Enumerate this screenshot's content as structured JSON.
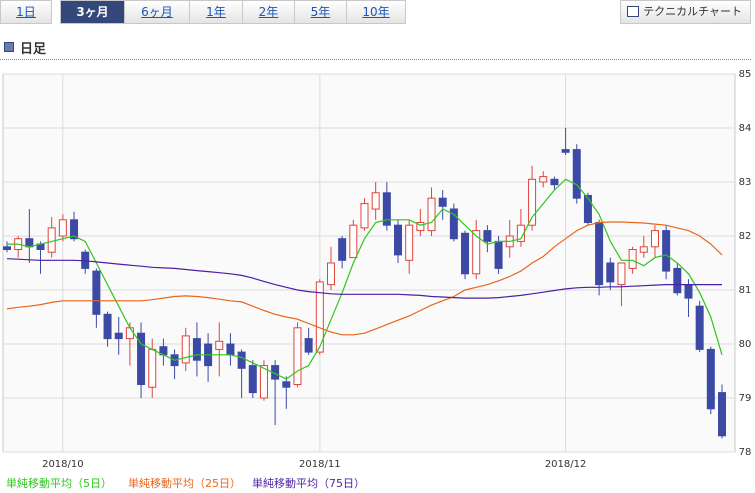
{
  "tabs": [
    "1日",
    "3ヶ月",
    "6ヶ月",
    "1年",
    "2年",
    "5年",
    "10年"
  ],
  "selected_tab": 1,
  "technical_button": "テクニカルチャート",
  "section_title": "日足",
  "chart_data": {
    "type": "candlestick",
    "categories": [
      null,
      null,
      null,
      null,
      null,
      "2018/10",
      null,
      null,
      null,
      null,
      null,
      null,
      null,
      null,
      null,
      null,
      null,
      null,
      null,
      null,
      null,
      null,
      null,
      null,
      null,
      null,
      null,
      null,
      "2018/11",
      null,
      null,
      null,
      null,
      null,
      null,
      null,
      null,
      null,
      null,
      null,
      null,
      null,
      null,
      null,
      null,
      null,
      null,
      null,
      null,
      null,
      "2018/12",
      null,
      null,
      null,
      null,
      null,
      null,
      null,
      null,
      null,
      null,
      null,
      null,
      null,
      null
    ],
    "ohlc": {
      "up_color": "#e0433a",
      "down_color": "#3c4aa6",
      "open": [
        81.8,
        81.75,
        81.95,
        81.85,
        81.7,
        82.0,
        82.3,
        81.7,
        81.35,
        80.55,
        80.2,
        80.1,
        80.2,
        79.2,
        79.95,
        79.8,
        79.65,
        80.1,
        80.0,
        79.9,
        80.0,
        79.85,
        79.6,
        79.0,
        79.6,
        79.3,
        79.25,
        80.1,
        79.85,
        81.1,
        81.95,
        81.6,
        82.15,
        82.5,
        82.8,
        82.2,
        81.55,
        82.1,
        82.1,
        82.7,
        82.5,
        82.05,
        81.3,
        82.1,
        81.9,
        81.8,
        81.9,
        82.2,
        83.0,
        83.05,
        83.6,
        83.6,
        82.75,
        82.25,
        81.5,
        81.1,
        81.4,
        81.7,
        81.8,
        82.1,
        81.4,
        81.1,
        80.7,
        79.9,
        79.1
      ],
      "high": [
        81.9,
        82.0,
        82.5,
        81.9,
        82.35,
        82.4,
        82.45,
        81.75,
        81.4,
        80.6,
        80.5,
        80.4,
        80.4,
        80.1,
        80.1,
        79.9,
        80.3,
        80.4,
        80.2,
        80.4,
        80.2,
        79.9,
        79.7,
        79.7,
        79.7,
        79.4,
        80.4,
        80.3,
        81.2,
        81.8,
        82.0,
        82.3,
        82.7,
        83.0,
        83.0,
        82.3,
        82.3,
        82.5,
        82.9,
        82.85,
        82.6,
        82.1,
        82.3,
        82.2,
        82.0,
        82.3,
        82.5,
        83.3,
        83.2,
        83.1,
        84.0,
        83.7,
        82.8,
        82.3,
        81.6,
        81.5,
        81.8,
        82.0,
        82.2,
        82.2,
        81.5,
        81.2,
        80.8,
        79.95,
        79.25
      ],
      "low": [
        81.7,
        81.6,
        81.5,
        81.3,
        81.6,
        81.9,
        81.9,
        81.3,
        80.3,
        79.95,
        79.8,
        79.6,
        79.0,
        79.0,
        79.6,
        79.35,
        79.5,
        79.4,
        79.3,
        79.4,
        79.6,
        79.0,
        79.0,
        78.95,
        78.5,
        78.8,
        79.2,
        79.8,
        79.8,
        81.0,
        81.4,
        81.6,
        82.1,
        82.3,
        82.1,
        81.5,
        81.3,
        82.0,
        82.0,
        82.3,
        81.9,
        81.2,
        81.2,
        81.7,
        81.3,
        81.6,
        81.8,
        82.1,
        82.9,
        82.85,
        83.5,
        82.6,
        82.2,
        80.9,
        81.0,
        80.7,
        81.3,
        81.6,
        81.6,
        81.2,
        80.9,
        80.5,
        79.85,
        78.7,
        78.25
      ],
      "close": [
        81.75,
        81.95,
        81.8,
        81.75,
        82.15,
        82.3,
        81.95,
        81.4,
        80.55,
        80.1,
        80.1,
        80.3,
        79.25,
        79.9,
        79.8,
        79.6,
        80.15,
        79.7,
        79.6,
        80.05,
        79.8,
        79.55,
        79.1,
        79.6,
        79.35,
        79.2,
        80.3,
        79.85,
        81.15,
        81.5,
        81.55,
        82.2,
        82.6,
        82.8,
        82.2,
        81.65,
        82.2,
        82.25,
        82.7,
        82.55,
        81.95,
        81.3,
        82.1,
        81.9,
        81.4,
        82.0,
        82.2,
        83.05,
        83.1,
        82.95,
        83.55,
        82.7,
        82.25,
        81.1,
        81.15,
        81.5,
        81.75,
        81.8,
        82.1,
        81.35,
        80.95,
        80.85,
        79.9,
        78.8,
        78.3
      ]
    },
    "series": [
      {
        "name": "単純移動平均（5日）",
        "color": "#2fc61e",
        "values": [
          81.85,
          81.85,
          81.8,
          81.85,
          81.9,
          81.95,
          82.0,
          81.9,
          81.5,
          81.1,
          80.7,
          80.3,
          80.0,
          79.9,
          79.8,
          79.7,
          79.75,
          79.8,
          79.8,
          79.8,
          79.8,
          79.75,
          79.65,
          79.55,
          79.45,
          79.35,
          79.5,
          79.6,
          79.95,
          80.45,
          80.95,
          81.5,
          81.95,
          82.25,
          82.3,
          82.3,
          82.3,
          82.2,
          82.25,
          82.5,
          82.4,
          82.2,
          82.0,
          81.85,
          81.9,
          81.9,
          81.95,
          82.35,
          82.6,
          82.85,
          83.05,
          82.95,
          82.7,
          82.4,
          81.9,
          81.55,
          81.55,
          81.45,
          81.6,
          81.65,
          81.5,
          81.3,
          80.95,
          80.5,
          79.8
        ]
      },
      {
        "name": "単純移動平均（25日）",
        "color": "#e8661c",
        "values": [
          80.65,
          80.68,
          80.7,
          80.73,
          80.77,
          80.8,
          80.8,
          80.8,
          80.8,
          80.8,
          80.8,
          80.8,
          80.8,
          80.82,
          80.85,
          80.88,
          80.89,
          80.88,
          80.86,
          80.83,
          80.8,
          80.78,
          80.7,
          80.62,
          80.55,
          80.5,
          80.46,
          80.38,
          80.3,
          80.22,
          80.17,
          80.17,
          80.2,
          80.28,
          80.36,
          80.44,
          80.52,
          80.62,
          80.72,
          80.8,
          80.88,
          81.0,
          81.05,
          81.1,
          81.17,
          81.25,
          81.35,
          81.5,
          81.62,
          81.8,
          81.95,
          82.1,
          82.2,
          82.25,
          82.26,
          82.26,
          82.25,
          82.24,
          82.22,
          82.2,
          82.15,
          82.1,
          82.0,
          81.85,
          81.65
        ]
      },
      {
        "name": "単純移動平均（75日）",
        "color": "#4b1fa6",
        "values": [
          81.58,
          81.57,
          81.56,
          81.55,
          81.55,
          81.55,
          81.55,
          81.54,
          81.52,
          81.5,
          81.48,
          81.46,
          81.44,
          81.42,
          81.41,
          81.4,
          81.38,
          81.36,
          81.34,
          81.32,
          81.3,
          81.27,
          81.22,
          81.16,
          81.1,
          81.05,
          81.0,
          80.97,
          80.95,
          80.93,
          80.92,
          80.92,
          80.92,
          80.92,
          80.92,
          80.92,
          80.91,
          80.9,
          80.88,
          80.87,
          80.86,
          80.85,
          80.85,
          80.85,
          80.86,
          80.88,
          80.9,
          80.93,
          80.96,
          80.99,
          81.02,
          81.04,
          81.05,
          81.05,
          81.06,
          81.06,
          81.07,
          81.08,
          81.09,
          81.1,
          81.1,
          81.1,
          81.1,
          81.1,
          81.1
        ]
      }
    ],
    "ylim": [
      78,
      85
    ],
    "yticks": [
      78,
      79,
      80,
      81,
      82,
      83,
      84,
      85
    ],
    "grid": true
  }
}
